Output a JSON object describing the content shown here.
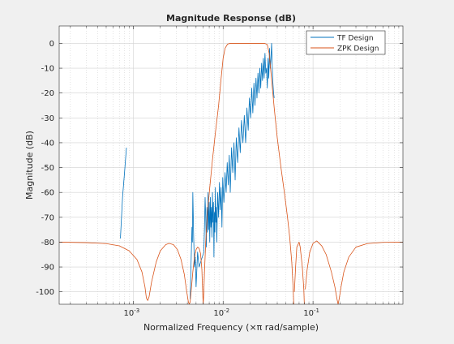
{
  "chart_data": {
    "type": "line",
    "title": "Magnitude Response (dB)",
    "xlabel": "Normalized Frequency (×π rad/sample)",
    "ylabel": "Magnitude (dB)",
    "xscale": "log",
    "xlim": [
      0.00015,
      1
    ],
    "ylim": [
      -105,
      7
    ],
    "grid": true,
    "minor_grid": true,
    "legend_location": "top-right",
    "y_ticks": [
      0,
      -10,
      -20,
      -30,
      -40,
      -50,
      -60,
      -70,
      -80,
      -90,
      -100
    ],
    "x_ticks": [
      {
        "value": 0.001,
        "base": "10",
        "exp": "-3"
      },
      {
        "value": 0.01,
        "base": "10",
        "exp": "-2"
      },
      {
        "value": 0.1,
        "base": "10",
        "exp": "-1"
      }
    ],
    "series": [
      {
        "name": "TF Design",
        "color": "#0072BD",
        "segments": [
          [
            [
              0.00072,
              -78.5
            ],
            [
              0.00076,
              -62
            ],
            [
              0.0008,
              -52
            ],
            [
              0.00084,
              -42
            ]
          ],
          [
            [
              0.0043,
              -103
            ],
            [
              0.0044,
              -88
            ],
            [
              0.0045,
              -74
            ],
            [
              0.00455,
              -80
            ],
            [
              0.0046,
              -60
            ],
            [
              0.0047,
              -78
            ],
            [
              0.0048,
              -90
            ],
            [
              0.0049,
              -86
            ],
            [
              0.005,
              -98
            ],
            [
              0.0052,
              -84
            ],
            [
              0.0054,
              -90
            ],
            [
              0.0061,
              -84
            ],
            [
              0.0062,
              -74
            ],
            [
              0.0063,
              -62
            ],
            [
              0.0064,
              -70
            ],
            [
              0.0065,
              -82
            ],
            [
              0.0066,
              -66
            ],
            [
              0.0067,
              -76
            ],
            [
              0.0068,
              -60
            ],
            [
              0.0069,
              -75
            ],
            [
              0.007,
              -64
            ],
            [
              0.0071,
              -80
            ],
            [
              0.0072,
              -62
            ],
            [
              0.0073,
              -74
            ],
            [
              0.0074,
              -66
            ],
            [
              0.0075,
              -78
            ],
            [
              0.0076,
              -60
            ],
            [
              0.0077,
              -72
            ],
            [
              0.0078,
              -64
            ],
            [
              0.0079,
              -86
            ],
            [
              0.008,
              -68
            ],
            [
              0.0081,
              -76
            ],
            [
              0.0082,
              -58
            ],
            [
              0.0083,
              -72
            ],
            [
              0.0084,
              -66
            ],
            [
              0.0085,
              -80
            ],
            [
              0.0087,
              -60
            ],
            [
              0.0089,
              -70
            ],
            [
              0.0091,
              -56
            ],
            [
              0.0093,
              -67
            ],
            [
              0.0095,
              -58
            ],
            [
              0.0097,
              -74
            ],
            [
              0.0099,
              -54
            ],
            [
              0.0102,
              -64
            ],
            [
              0.0105,
              -52
            ],
            [
              0.0108,
              -60
            ],
            [
              0.0111,
              -48
            ],
            [
              0.0114,
              -57
            ],
            [
              0.0117,
              -45
            ],
            [
              0.012,
              -60
            ],
            [
              0.0124,
              -42
            ],
            [
              0.0128,
              -52
            ],
            [
              0.0132,
              -40
            ],
            [
              0.0136,
              -55
            ],
            [
              0.014,
              -38
            ],
            [
              0.0145,
              -48
            ],
            [
              0.015,
              -34
            ],
            [
              0.0155,
              -44
            ],
            [
              0.016,
              -31
            ],
            [
              0.0166,
              -40
            ],
            [
              0.0172,
              -29
            ],
            [
              0.0178,
              -40
            ],
            [
              0.0184,
              -26
            ],
            [
              0.019,
              -35
            ],
            [
              0.0196,
              -22
            ],
            [
              0.0202,
              -30
            ],
            [
              0.0208,
              -18
            ],
            [
              0.0214,
              -28
            ],
            [
              0.022,
              -16
            ],
            [
              0.0226,
              -25
            ],
            [
              0.0232,
              -14
            ],
            [
              0.0238,
              -22
            ],
            [
              0.0244,
              -12
            ],
            [
              0.025,
              -20
            ],
            [
              0.0256,
              -10
            ],
            [
              0.0262,
              -18
            ],
            [
              0.0268,
              -8
            ],
            [
              0.0274,
              -15
            ],
            [
              0.028,
              -6
            ],
            [
              0.0286,
              -14
            ],
            [
              0.0292,
              -4
            ],
            [
              0.0298,
              -12
            ],
            [
              0.0304,
              -10
            ],
            [
              0.031,
              -18
            ],
            [
              0.0316,
              -6
            ],
            [
              0.0322,
              -14
            ],
            [
              0.0328,
              -2
            ],
            [
              0.0334,
              -10
            ],
            [
              0.034,
              -6
            ],
            [
              0.0346,
              0
            ],
            [
              0.0352,
              -10
            ],
            [
              0.0358,
              -16
            ],
            [
              0.0364,
              -20
            ],
            [
              0.037,
              -22
            ]
          ]
        ]
      },
      {
        "name": "ZPK Design",
        "color": "#D95319",
        "segments": [
          [
            [
              0.00015,
              -80
            ],
            [
              0.0003,
              -80.2
            ],
            [
              0.0005,
              -80.6
            ],
            [
              0.0007,
              -81.5
            ],
            [
              0.0009,
              -83.5
            ],
            [
              0.0011,
              -87
            ],
            [
              0.00125,
              -92
            ],
            [
              0.00135,
              -98
            ],
            [
              0.0014,
              -102.5
            ],
            [
              0.00145,
              -103.5
            ],
            [
              0.0015,
              -102
            ],
            [
              0.0016,
              -96
            ],
            [
              0.0018,
              -88
            ],
            [
              0.002,
              -83.5
            ],
            [
              0.0023,
              -81
            ],
            [
              0.0025,
              -80.5
            ],
            [
              0.0028,
              -81
            ],
            [
              0.0031,
              -83
            ],
            [
              0.0034,
              -87
            ],
            [
              0.0037,
              -93
            ],
            [
              0.0039,
              -99
            ],
            [
              0.0041,
              -104
            ],
            [
              0.0042,
              -105
            ],
            [
              0.0043,
              -104
            ],
            [
              0.0044,
              -100
            ],
            [
              0.0046,
              -92
            ],
            [
              0.0048,
              -86
            ],
            [
              0.005,
              -83
            ],
            [
              0.0052,
              -82
            ],
            [
              0.0054,
              -82.5
            ],
            [
              0.0056,
              -84.5
            ],
            [
              0.0058,
              -91
            ],
            [
              0.0059,
              -99
            ],
            [
              0.006,
              -105
            ],
            [
              0.0061,
              -100
            ],
            [
              0.0062,
              -92
            ],
            [
              0.0064,
              -80
            ],
            [
              0.0067,
              -68
            ],
            [
              0.0071,
              -58
            ],
            [
              0.0076,
              -47
            ],
            [
              0.0082,
              -36
            ],
            [
              0.0089,
              -25
            ],
            [
              0.0095,
              -14
            ],
            [
              0.01,
              -6
            ],
            [
              0.0105,
              -2
            ],
            [
              0.0112,
              -0.3
            ],
            [
              0.012,
              0
            ],
            [
              0.015,
              0
            ],
            [
              0.02,
              0
            ],
            [
              0.025,
              0
            ],
            [
              0.029,
              0
            ],
            [
              0.031,
              -0.5
            ],
            [
              0.0325,
              -4
            ],
            [
              0.0345,
              -14
            ],
            [
              0.037,
              -26
            ],
            [
              0.04,
              -38
            ],
            [
              0.044,
              -50
            ],
            [
              0.048,
              -60
            ],
            [
              0.052,
              -70
            ],
            [
              0.055,
              -78
            ],
            [
              0.058,
              -88
            ],
            [
              0.06,
              -98
            ],
            [
              0.061,
              -105
            ]
          ],
          [
            [
              0.062,
              -100
            ],
            [
              0.064,
              -90
            ],
            [
              0.066,
              -82
            ],
            [
              0.07,
              -80
            ],
            [
              0.072,
              -82
            ],
            [
              0.076,
              -90
            ],
            [
              0.079,
              -99
            ],
            [
              0.08,
              -105
            ]
          ],
          [
            [
              0.082,
              -99
            ],
            [
              0.086,
              -91
            ],
            [
              0.092,
              -84
            ],
            [
              0.1,
              -80.5
            ],
            [
              0.11,
              -79.5
            ],
            [
              0.125,
              -81.5
            ],
            [
              0.14,
              -85
            ],
            [
              0.16,
              -92
            ],
            [
              0.175,
              -98
            ],
            [
              0.185,
              -103
            ],
            [
              0.19,
              -105
            ],
            [
              0.195,
              -103
            ],
            [
              0.205,
              -98
            ],
            [
              0.22,
              -92
            ],
            [
              0.25,
              -86
            ],
            [
              0.3,
              -82
            ],
            [
              0.4,
              -80.6
            ],
            [
              0.6,
              -80.1
            ],
            [
              1,
              -80
            ]
          ]
        ]
      }
    ]
  }
}
